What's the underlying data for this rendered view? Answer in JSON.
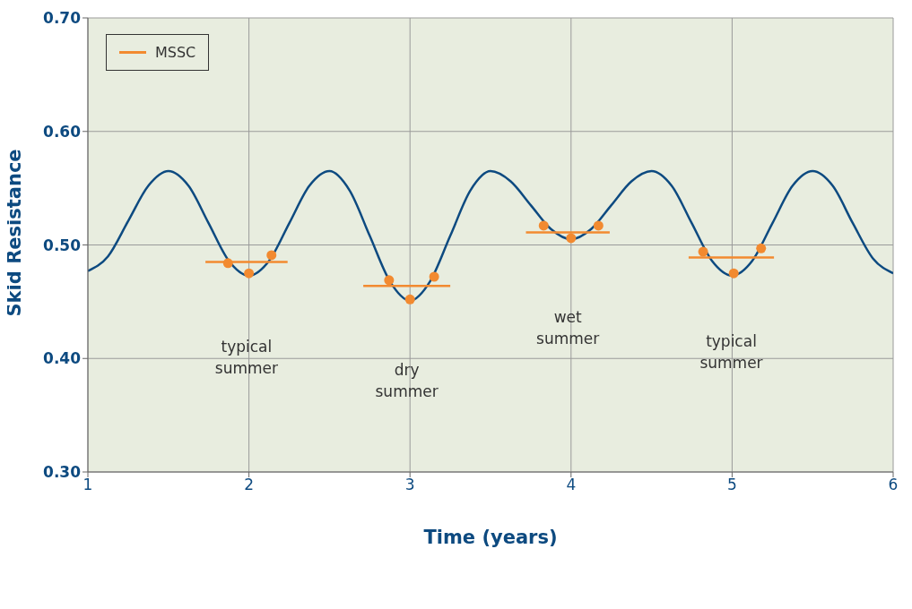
{
  "chart_data": {
    "type": "line",
    "xlabel": "Time  (years)",
    "ylabel": "Skid Resistance",
    "xlim": [
      1,
      6
    ],
    "xticks": [
      1,
      2,
      3,
      4,
      5,
      6
    ],
    "ylim": [
      0.3,
      0.7
    ],
    "yticks": [
      {
        "value": 0.3,
        "label": "0.30"
      },
      {
        "value": 0.4,
        "label": "0.40"
      },
      {
        "value": 0.5,
        "label": "0.50"
      },
      {
        "value": 0.6,
        "label": "0.60"
      },
      {
        "value": 0.7,
        "label": "0.70"
      }
    ],
    "grid": true,
    "legend": "top left",
    "marker": "none",
    "line_style": "solid",
    "series": [
      {
        "color": "#0d4a80",
        "x": [
          1,
          1.125,
          1.25,
          1.375,
          1.5,
          1.625,
          1.75,
          1.875,
          2,
          2.125,
          2.25,
          2.375,
          2.5,
          2.625,
          2.75,
          2.875,
          3,
          3.125,
          3.25,
          3.375,
          3.5,
          3.625,
          3.75,
          3.875,
          4,
          4.125,
          4.25,
          4.375,
          4.5,
          4.625,
          4.75,
          4.875,
          5,
          5.125,
          5.25,
          5.375,
          5.5,
          5.625,
          5.75,
          5.875,
          6
        ],
        "values": [
          0.477,
          0.49,
          0.521,
          0.552,
          0.565,
          0.552,
          0.519,
          0.486,
          0.473,
          0.486,
          0.519,
          0.552,
          0.565,
          0.548,
          0.508,
          0.468,
          0.451,
          0.468,
          0.508,
          0.548,
          0.565,
          0.556,
          0.535,
          0.514,
          0.505,
          0.514,
          0.535,
          0.556,
          0.565,
          0.552,
          0.519,
          0.486,
          0.473,
          0.486,
          0.519,
          0.552,
          0.565,
          0.552,
          0.519,
          0.488,
          0.475
        ]
      },
      {
        "type": "line",
        "name": "MSSC",
        "color": "#f28a30",
        "x": [
          1.73,
          2.24,
          2.5,
          2.71,
          3.25,
          3.5,
          3.72,
          4.24,
          4.5,
          4.73,
          5.26
        ],
        "values": [
          0.485,
          0.485,
          null,
          0.464,
          0.464,
          null,
          0.511,
          0.511,
          null,
          0.489,
          0.489
        ]
      },
      {
        "type": "scatter",
        "color": "#f28a30",
        "marker": "circle",
        "x": [
          1.87,
          2.0,
          2.14,
          2.87,
          3.0,
          3.15,
          3.83,
          4.0,
          4.17,
          4.82,
          5.01,
          5.18
        ],
        "values": [
          0.484,
          0.475,
          0.491,
          0.469,
          0.452,
          0.472,
          0.517,
          0.506,
          0.517,
          0.494,
          0.475,
          0.497
        ]
      }
    ],
    "annotations": [
      "typical summer",
      "dry summer",
      "wet summer",
      "typical summer"
    ]
  }
}
